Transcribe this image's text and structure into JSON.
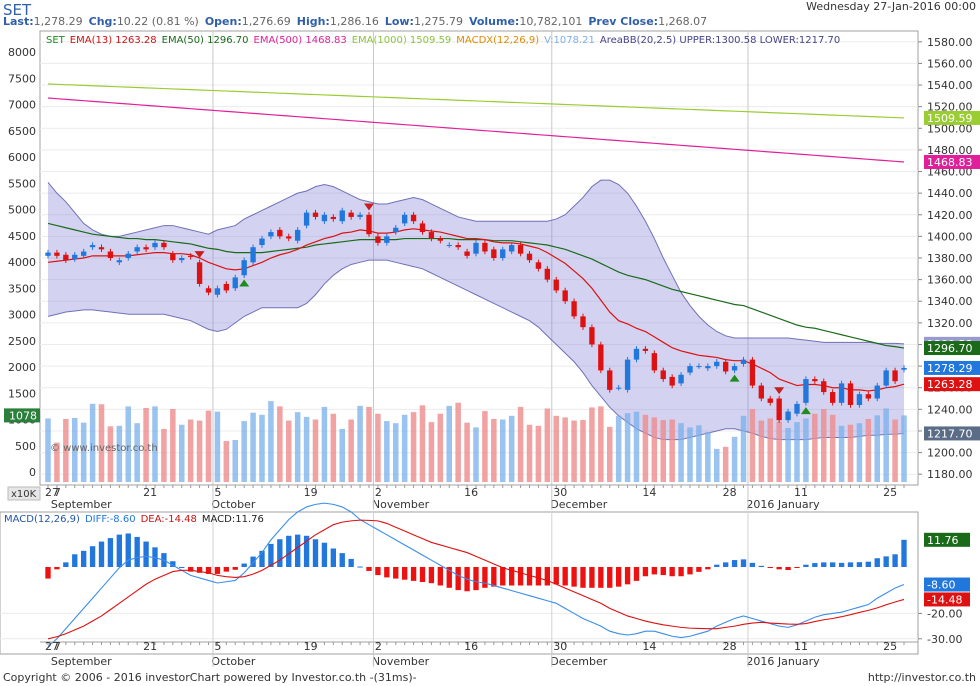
{
  "header": {
    "symbol": "SET",
    "datetime": "Wednesday 27-Jan-2016 00:00",
    "quote": [
      {
        "label": "Last:",
        "value": "1,278.29"
      },
      {
        "label": "Chg:",
        "value": "10.22 (0.81 %)"
      },
      {
        "label": "Open:",
        "value": "1,276.69"
      },
      {
        "label": "High:",
        "value": "1,286.16"
      },
      {
        "label": "Low:",
        "value": "1,275.79"
      },
      {
        "label": "Volume:",
        "value": "10,782,101"
      },
      {
        "label": "Prev Close:",
        "value": "1,268.07"
      }
    ]
  },
  "legend": {
    "items": [
      {
        "text": "SET",
        "color": "#1a8f1a"
      },
      {
        "text": "EMA(13) 1263.28",
        "color": "#d01010"
      },
      {
        "text": "EMA(50) 1296.70",
        "color": "#1a6a1a"
      },
      {
        "text": "EMA(500) 1468.83",
        "color": "#e0209a"
      },
      {
        "text": "EMA(1000) 1509.59",
        "color": "#8cc43c"
      },
      {
        "text": "MACDX(12,26,9)",
        "color": "#e08a00"
      },
      {
        "text": "V:1078.21",
        "color": "#7fb0e8"
      },
      {
        "text": "AreaBB(20,2.5) UPPER:1300.58 LOWER:1217.70",
        "color": "#444488"
      }
    ]
  },
  "macd_legend": {
    "items": [
      {
        "text": "MACD(12,26,9)",
        "color": "#2255aa"
      },
      {
        "text": "DIFF:-8.60",
        "color": "#2277dd"
      },
      {
        "text": "DEA:-14.48",
        "color": "#cc1111"
      },
      {
        "text": "MACD:11.76",
        "color": "#222222"
      }
    ]
  },
  "footer": {
    "copyright": "Copyright © 2006 - 2016 investorChart powered by Investor.co.th -(31ms)-",
    "url": "http://investor.co.th"
  },
  "watermark": "© www.investor.co.th",
  "volume_unit": "x10K",
  "chart_data": {
    "type": "candlestick",
    "price_axis": {
      "min": 1170,
      "max": 1590,
      "ticks": [
        1180,
        1200,
        1220,
        1240,
        1260,
        1280,
        1300,
        1320,
        1340,
        1360,
        1380,
        1400,
        1420,
        1440,
        1460,
        1480,
        1500,
        1520,
        1540,
        1560,
        1580
      ]
    },
    "volume_axis": {
      "min": 0,
      "max": 8000,
      "ticks": [
        0,
        500,
        1000,
        1500,
        2000,
        2500,
        3000,
        3500,
        4000,
        4500,
        5000,
        5500,
        6000,
        6500,
        7000,
        7500,
        8000
      ]
    },
    "x_axis": {
      "day_labels": [
        {
          "i": 0,
          "text": "27"
        },
        {
          "i": 1,
          "text": "7"
        },
        {
          "i": 11,
          "text": "21"
        },
        {
          "i": 19,
          "text": "5"
        },
        {
          "i": 29,
          "text": "19"
        },
        {
          "i": 37,
          "text": "2"
        },
        {
          "i": 47,
          "text": "16"
        },
        {
          "i": 57,
          "text": "30"
        },
        {
          "i": 67,
          "text": "14"
        },
        {
          "i": 76,
          "text": "28"
        },
        {
          "i": 84,
          "text": "11"
        },
        {
          "i": 94,
          "text": "25"
        }
      ],
      "month_labels": [
        {
          "i": 1,
          "text": "September"
        },
        {
          "i": 19,
          "text": "October"
        },
        {
          "i": 37,
          "text": "November"
        },
        {
          "i": 57,
          "text": "December"
        },
        {
          "i": 79,
          "text": "2016 January"
        }
      ],
      "month_separators": [
        18.5,
        36.5,
        56.5,
        78.5
      ]
    },
    "close": [
      1385,
      1382,
      1378,
      1383,
      1386,
      1392,
      1388,
      1380,
      1378,
      1384,
      1390,
      1388,
      1394,
      1390,
      1378,
      1380,
      1381,
      1356,
      1348,
      1352,
      1350,
      1362,
      1378,
      1390,
      1398,
      1404,
      1400,
      1398,
      1406,
      1422,
      1418,
      1420,
      1416,
      1424,
      1418,
      1420,
      1402,
      1394,
      1400,
      1408,
      1420,
      1414,
      1404,
      1398,
      1396,
      1392,
      1390,
      1382,
      1394,
      1386,
      1380,
      1388,
      1392,
      1384,
      1378,
      1370,
      1360,
      1350,
      1340,
      1326,
      1316,
      1300,
      1276,
      1258,
      1260,
      1286,
      1296,
      1294,
      1276,
      1268,
      1262,
      1272,
      1280,
      1280,
      1280,
      1284,
      1275,
      1280,
      1286,
      1262,
      1250,
      1246,
      1230,
      1238,
      1245,
      1268,
      1266,
      1256,
      1246,
      1264,
      1244,
      1254,
      1250,
      1262,
      1276,
      1266,
      1278.29
    ],
    "open": [
      1382,
      1385,
      1383,
      1379,
      1382,
      1390,
      1390,
      1386,
      1376,
      1380,
      1386,
      1390,
      1390,
      1394,
      1384,
      1378,
      1382,
      1376,
      1352,
      1346,
      1356,
      1352,
      1364,
      1376,
      1392,
      1400,
      1406,
      1400,
      1396,
      1410,
      1422,
      1414,
      1418,
      1414,
      1422,
      1418,
      1420,
      1400,
      1394,
      1404,
      1412,
      1420,
      1412,
      1404,
      1398,
      1392,
      1392,
      1386,
      1384,
      1394,
      1388,
      1380,
      1386,
      1392,
      1384,
      1376,
      1370,
      1360,
      1350,
      1340,
      1326,
      1316,
      1300,
      1276,
      1260,
      1258,
      1286,
      1296,
      1292,
      1276,
      1270,
      1264,
      1274,
      1280,
      1278,
      1280,
      1284,
      1276,
      1282,
      1286,
      1262,
      1250,
      1250,
      1230,
      1236,
      1246,
      1268,
      1266,
      1256,
      1246,
      1264,
      1244,
      1254,
      1250,
      1262,
      1276,
      1276.69
    ],
    "ema13": [
      1376,
      1377,
      1378,
      1379,
      1380,
      1382,
      1382,
      1382,
      1382,
      1382,
      1383,
      1384,
      1385,
      1385,
      1384,
      1384,
      1383,
      1380,
      1376,
      1373,
      1370,
      1369,
      1370,
      1373,
      1376,
      1380,
      1383,
      1385,
      1388,
      1392,
      1395,
      1398,
      1400,
      1403,
      1404,
      1406,
      1405,
      1403,
      1403,
      1404,
      1406,
      1407,
      1406,
      1405,
      1404,
      1402,
      1400,
      1398,
      1398,
      1397,
      1395,
      1394,
      1394,
      1393,
      1391,
      1389,
      1385,
      1380,
      1375,
      1368,
      1361,
      1352,
      1341,
      1330,
      1322,
      1319,
      1315,
      1312,
      1307,
      1302,
      1297,
      1294,
      1292,
      1290,
      1289,
      1288,
      1286,
      1285,
      1285,
      1282,
      1278,
      1274,
      1268,
      1265,
      1262,
      1263,
      1263,
      1262,
      1260,
      1260,
      1258,
      1258,
      1257,
      1258,
      1260,
      1261,
      1263.28
    ],
    "ema50": [
      1412,
      1410,
      1408,
      1406,
      1404,
      1402,
      1401,
      1400,
      1399,
      1398,
      1398,
      1397,
      1397,
      1396,
      1395,
      1394,
      1393,
      1391,
      1389,
      1388,
      1386,
      1385,
      1385,
      1385,
      1385,
      1386,
      1387,
      1388,
      1389,
      1390,
      1392,
      1393,
      1394,
      1395,
      1396,
      1397,
      1397,
      1397,
      1397,
      1397,
      1398,
      1398,
      1398,
      1398,
      1398,
      1398,
      1397,
      1397,
      1397,
      1397,
      1396,
      1396,
      1396,
      1395,
      1394,
      1393,
      1392,
      1390,
      1388,
      1385,
      1382,
      1379,
      1375,
      1371,
      1367,
      1364,
      1362,
      1360,
      1357,
      1354,
      1351,
      1349,
      1347,
      1345,
      1343,
      1341,
      1339,
      1337,
      1336,
      1333,
      1330,
      1327,
      1324,
      1321,
      1318,
      1316,
      1315,
      1313,
      1311,
      1309,
      1307,
      1305,
      1303,
      1301,
      1299,
      1298,
      1296.7
    ],
    "ema500": {
      "start": 1528,
      "end": 1468.83
    },
    "ema1000": {
      "start": 1541,
      "end": 1509.59
    },
    "bb_upper": [
      1450,
      1440,
      1432,
      1422,
      1412,
      1406,
      1402,
      1400,
      1400,
      1402,
      1404,
      1406,
      1408,
      1410,
      1410,
      1408,
      1406,
      1404,
      1402,
      1406,
      1408,
      1410,
      1416,
      1420,
      1424,
      1428,
      1432,
      1436,
      1440,
      1442,
      1446,
      1448,
      1446,
      1442,
      1438,
      1434,
      1432,
      1430,
      1430,
      1432,
      1434,
      1436,
      1434,
      1430,
      1426,
      1422,
      1418,
      1416,
      1414,
      1414,
      1414,
      1414,
      1414,
      1414,
      1414,
      1414,
      1414,
      1416,
      1420,
      1428,
      1436,
      1446,
      1452,
      1452,
      1448,
      1440,
      1428,
      1414,
      1398,
      1380,
      1364,
      1348,
      1336,
      1326,
      1318,
      1312,
      1308,
      1306,
      1306,
      1306,
      1306,
      1306,
      1306,
      1306,
      1305,
      1304,
      1303,
      1302,
      1302,
      1302,
      1302,
      1302,
      1302,
      1301,
      1301,
      1301,
      1300.58
    ],
    "bb_lower": [
      1326,
      1328,
      1330,
      1331,
      1332,
      1332,
      1331,
      1330,
      1329,
      1328,
      1328,
      1328,
      1328,
      1328,
      1326,
      1324,
      1322,
      1318,
      1314,
      1312,
      1314,
      1320,
      1326,
      1330,
      1334,
      1334,
      1334,
      1334,
      1334,
      1338,
      1346,
      1356,
      1364,
      1370,
      1374,
      1376,
      1378,
      1378,
      1378,
      1376,
      1374,
      1372,
      1370,
      1366,
      1362,
      1358,
      1354,
      1350,
      1346,
      1342,
      1338,
      1334,
      1330,
      1326,
      1322,
      1316,
      1308,
      1300,
      1292,
      1284,
      1274,
      1262,
      1252,
      1242,
      1234,
      1228,
      1222,
      1218,
      1214,
      1212,
      1212,
      1212,
      1214,
      1216,
      1218,
      1220,
      1222,
      1222,
      1220,
      1218,
      1215,
      1213,
      1212,
      1212,
      1212,
      1212,
      1213,
      1214,
      1214,
      1214,
      1214,
      1215,
      1216,
      1216,
      1217,
      1217,
      1217.7
    ],
    "volume": [
      1020,
      560,
      1010,
      1030,
      940,
      1300,
      1290,
      870,
      880,
      1250,
      930,
      1220,
      1250,
      820,
      1200,
      900,
      1000,
      980,
      1170,
      1150,
      590,
      610,
      970,
      1130,
      1090,
      1350,
      1250,
      980,
      1140,
      1050,
      1000,
      1240,
      1110,
      820,
      1000,
      1260,
      1240,
      1110,
      970,
      930,
      1090,
      1140,
      1270,
      950,
      1110,
      1260,
      1320,
      940,
      850,
      1160,
      1010,
      1000,
      1070,
      1240,
      900,
      880,
      1210,
      1070,
      1040,
      980,
      990,
      1230,
      1250,
      860,
      1070,
      1120,
      1150,
      1090,
      1040,
      990,
      1000,
      930,
      850,
      890,
      760,
      440,
      480,
      670,
      1070,
      1200,
      980,
      1020,
      960,
      840,
      950,
      1020,
      1110,
      1200,
      1090,
      880,
      900,
      930,
      1010,
      1080,
      1210,
      1000,
      1078.21
    ],
    "diff": [
      -33,
      -30,
      -26,
      -22,
      -18,
      -14,
      -10,
      -6,
      -2,
      1,
      2,
      2.5,
      2,
      1,
      -1,
      -3,
      -5,
      -6,
      -7,
      -8,
      -7.5,
      -7,
      -4,
      0,
      4,
      9,
      13,
      17,
      20,
      22,
      23,
      23.5,
      23,
      22,
      20,
      17,
      15,
      13,
      11,
      9,
      7,
      5,
      3,
      1,
      -1,
      -3,
      -5,
      -6.5,
      -7.5,
      -8,
      -9,
      -10,
      -11,
      -12,
      -13,
      -14,
      -15,
      -16,
      -18,
      -20,
      -22,
      -23.5,
      -25,
      -27,
      -28,
      -28.5,
      -28,
      -27,
      -27,
      -28,
      -29,
      -29.5,
      -29,
      -28,
      -27,
      -25,
      -23.5,
      -22,
      -21,
      -22,
      -23,
      -24,
      -25,
      -25.5,
      -24.5,
      -23,
      -21.5,
      -20.5,
      -20,
      -19.5,
      -18.5,
      -17.5,
      -16.5,
      -14,
      -12,
      -10,
      -8.6
    ],
    "dea": [
      -30,
      -29.2,
      -28,
      -26.5,
      -25,
      -23,
      -21,
      -18.5,
      -16,
      -13.5,
      -11,
      -8.5,
      -6.5,
      -5,
      -3.5,
      -3,
      -3,
      -3.5,
      -4,
      -5,
      -5.5,
      -5.8,
      -5.5,
      -4.5,
      -3,
      -1,
      1,
      3.5,
      6,
      8.5,
      11,
      13,
      15,
      16,
      16.5,
      16.8,
      16.7,
      16.5,
      15.5,
      14,
      12.5,
      11,
      9.5,
      8,
      7,
      6,
      5,
      4,
      2.5,
      1,
      -0.5,
      -2,
      -3,
      -4,
      -5,
      -6,
      -7,
      -8.5,
      -10,
      -11.5,
      -13,
      -14.5,
      -16,
      -18,
      -19.5,
      -21,
      -22,
      -23,
      -23.8,
      -24.5,
      -25,
      -25.5,
      -25.8,
      -25.9,
      -26,
      -26,
      -25.5,
      -25,
      -24.3,
      -23.8,
      -23.5,
      -23.8,
      -24,
      -24.2,
      -24.3,
      -24,
      -23.2,
      -22.5,
      -22,
      -21.3,
      -20.5,
      -19.6,
      -18.8,
      -17.8,
      -16.6,
      -15.5,
      -14.48
    ],
    "macd_hist": [
      -5,
      -1,
      2,
      5.5,
      7,
      9,
      11,
      12.5,
      14,
      14.5,
      13,
      11,
      8.5,
      6,
      2.5,
      0,
      -2,
      -2.5,
      -3,
      -3,
      -2,
      -1.2,
      1.5,
      4.5,
      7,
      10,
      12,
      13.5,
      14,
      13.5,
      12,
      10.5,
      8,
      6,
      3.5,
      0.2,
      -1.7,
      -3.5,
      -4.5,
      -5,
      -5.5,
      -6,
      -6.5,
      -7,
      -8,
      -9,
      -10,
      -10.5,
      -10,
      -9,
      -8.5,
      -8,
      -8,
      -8,
      -8,
      -8,
      -8,
      -7.5,
      -8,
      -8.5,
      -9,
      -9,
      -9,
      -9,
      -8.5,
      -7.5,
      -6,
      -4,
      -3.2,
      -3.5,
      -4,
      -4,
      -3.2,
      -2.1,
      -1,
      1,
      2,
      3,
      3.3,
      1.8,
      0.5,
      -0.2,
      -1,
      -1.3,
      -0.2,
      1,
      1.7,
      2,
      2,
      1.8,
      2,
      2.1,
      2.3,
      3.8,
      4.6,
      5.5,
      11.76
    ],
    "diff_axis": {
      "min": -36,
      "max": 20,
      "ticks": [
        -30,
        -20
      ]
    },
    "markers": [
      {
        "i": 17,
        "type": "down",
        "color": "#c81e1e"
      },
      {
        "i": 22,
        "type": "up",
        "color": "#1e8c1e"
      },
      {
        "i": 36,
        "type": "down",
        "color": "#c81e1e"
      },
      {
        "i": 77,
        "type": "up",
        "color": "#1e8c1e"
      },
      {
        "i": 82,
        "type": "down",
        "color": "#c81e1e"
      },
      {
        "i": 85,
        "type": "up",
        "color": "#1e8c1e"
      }
    ],
    "right_labels": [
      {
        "text": "1509.59",
        "value": 1509.59,
        "bg": "#9acd32",
        "fg": "#ffffff"
      },
      {
        "text": "1468.83",
        "value": 1468.83,
        "bg": "#e0209a",
        "fg": "#ffffff"
      },
      {
        "text": "1300.58",
        "value": 1300.58,
        "bg": "#9a9ad0",
        "fg": "#ffffff"
      },
      {
        "text": "1296.70",
        "value": 1296.7,
        "bg": "#1a6a1a",
        "fg": "#ffffff"
      },
      {
        "text": "1278.29",
        "value": 1278.29,
        "bg": "#2277dd",
        "fg": "#ffffff"
      },
      {
        "text": "1263.28",
        "value": 1263.28,
        "bg": "#dd1111",
        "fg": "#ffffff"
      },
      {
        "text": "1217.70",
        "value": 1217.7,
        "bg": "#5a6c86",
        "fg": "#ffffff"
      }
    ],
    "volume_label": {
      "text": "1078",
      "bg": "#2a7f3a"
    },
    "macd_right_labels": [
      {
        "text": "11.76",
        "value": 11.76,
        "bg": "#1a6a1a"
      },
      {
        "text": "-8.60",
        "value": -8.6,
        "bg": "#2277dd"
      },
      {
        "text": "-14.48",
        "value": -14.48,
        "bg": "#dd1111"
      }
    ]
  }
}
